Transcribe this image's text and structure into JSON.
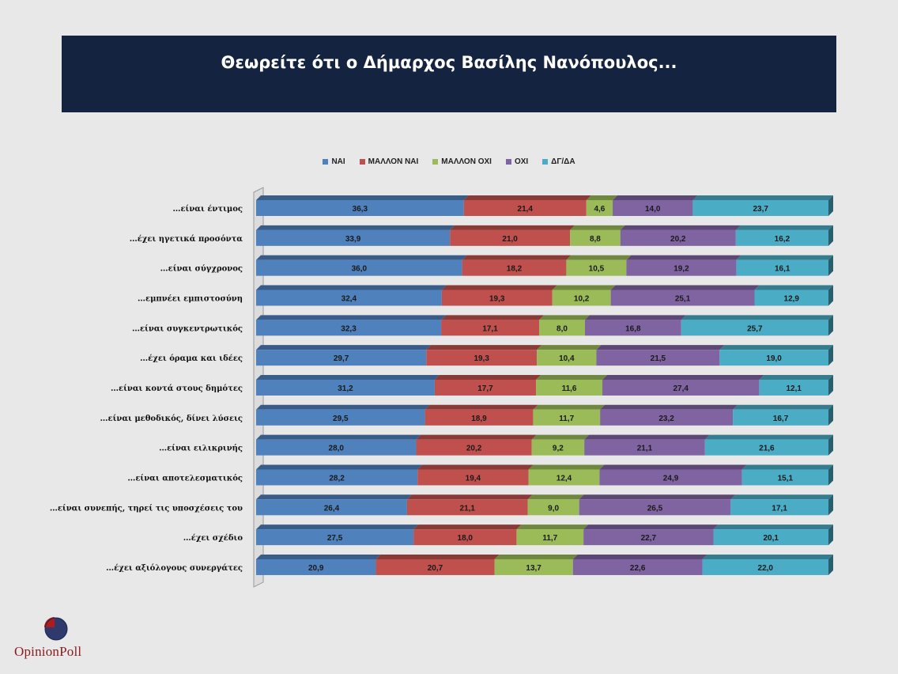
{
  "title": "Θεωρείτε ότι ο Δήμαρχος Βασίλης Νανόπουλος...",
  "logo": {
    "text": "OpinionPoll"
  },
  "chart_data": {
    "type": "bar",
    "orientation": "horizontal",
    "stacked": true,
    "stacked_100": true,
    "legend_position": "top",
    "categories": [
      "…είναι έντιμος",
      "…έχει ηγετικά προσόντα",
      "…είναι σύγχρονος",
      "…εμπνέει εμπιστοσύνη",
      "…είναι συγκεντρωτικός",
      "…έχει όραμα και ιδέες",
      "…είναι κοντά στους δημότες",
      "…είναι μεθοδικός, δίνει λύσεις",
      "…είναι ειλικρινής",
      "…είναι αποτελεσματικός",
      "…είναι συνεπής, τηρεί τις υποσχέσεις του",
      "…έχει σχέδιο",
      "…έχει αξιόλογους συνεργάτες"
    ],
    "series": [
      {
        "name": "ΝΑΙ",
        "color": "#4f81bd",
        "values": [
          36.3,
          33.9,
          36.0,
          32.4,
          32.3,
          29.7,
          31.2,
          29.5,
          28.0,
          28.2,
          26.4,
          27.5,
          20.9
        ],
        "labels": [
          "36,3",
          "33,9",
          "36,0",
          "32,4",
          "32,3",
          "29,7",
          "31,2",
          "29,5",
          "28,0",
          "28,2",
          "26,4",
          "27,5",
          "20,9"
        ]
      },
      {
        "name": "ΜΑΛΛΟΝ ΝΑΙ",
        "color": "#c0504d",
        "values": [
          21.4,
          21.0,
          18.2,
          19.3,
          17.1,
          19.3,
          17.7,
          18.9,
          20.2,
          19.4,
          21.1,
          18.0,
          20.7
        ],
        "labels": [
          "21,4",
          "21,0",
          "18,2",
          "19,3",
          "17,1",
          "19,3",
          "17,7",
          "18,9",
          "20,2",
          "19,4",
          "21,1",
          "18,0",
          "20,7"
        ]
      },
      {
        "name": "ΜΑΛΛΟΝ ΟΧΙ",
        "color": "#9bbb59",
        "values": [
          4.6,
          8.8,
          10.5,
          10.2,
          8.0,
          10.4,
          11.6,
          11.7,
          9.2,
          12.4,
          9.0,
          11.7,
          13.7
        ],
        "labels": [
          "4,6",
          "8,8",
          "10,5",
          "10,2",
          "8,0",
          "10,4",
          "11,6",
          "11,7",
          "9,2",
          "12,4",
          "9,0",
          "11,7",
          "13,7"
        ]
      },
      {
        "name": "ΟΧΙ",
        "color": "#8064a2",
        "values": [
          14.0,
          20.2,
          19.2,
          25.1,
          16.8,
          21.5,
          27.4,
          23.2,
          21.1,
          24.9,
          26.5,
          22.7,
          22.6
        ],
        "labels": [
          "14,0",
          "20,2",
          "19,2",
          "25,1",
          "16,8",
          "21,5",
          "27,4",
          "23,2",
          "21,1",
          "24,9",
          "26,5",
          "22,7",
          "22,6"
        ]
      },
      {
        "name": "ΔΓ/ΔΑ",
        "color": "#4bacc6",
        "values": [
          23.7,
          16.2,
          16.1,
          12.9,
          25.7,
          19.0,
          12.1,
          16.7,
          21.6,
          15.1,
          17.1,
          20.1,
          22.0
        ],
        "labels": [
          "23,7",
          "16,2",
          "16,1",
          "12,9",
          "25,7",
          "19,0",
          "12,1",
          "16,7",
          "21,6",
          "15,1",
          "17,1",
          "20,1",
          "22,0"
        ]
      }
    ]
  }
}
